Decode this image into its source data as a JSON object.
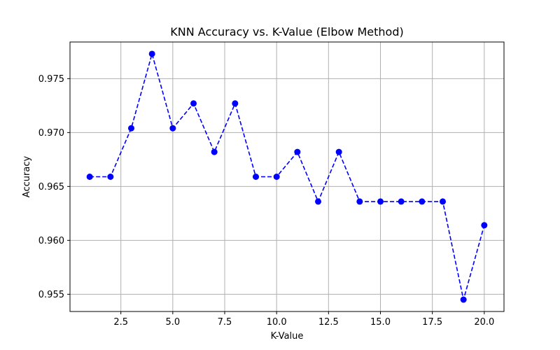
{
  "chart_data": {
    "type": "line",
    "title": "KNN Accuracy vs. K-Value (Elbow Method)",
    "xlabel": "K-Value",
    "ylabel": "Accuracy",
    "x": [
      1,
      2,
      3,
      4,
      5,
      6,
      7,
      8,
      9,
      10,
      11,
      12,
      13,
      14,
      15,
      16,
      17,
      18,
      19,
      20
    ],
    "series": [
      {
        "values": [
          0.9659,
          0.9659,
          0.9704,
          0.9773,
          0.9704,
          0.9727,
          0.9682,
          0.9727,
          0.9659,
          0.9659,
          0.9682,
          0.9636,
          0.9682,
          0.9636,
          0.9636,
          0.9636,
          0.9636,
          0.9636,
          0.9545,
          0.9614
        ],
        "color": "#0000ff",
        "linestyle": "dashed",
        "marker": "circle"
      }
    ],
    "xlim": [
      0.05,
      20.95
    ],
    "ylim": [
      0.9534,
      0.9784
    ],
    "xticks": [
      2.5,
      5.0,
      7.5,
      10.0,
      12.5,
      15.0,
      17.5,
      20.0
    ],
    "xtick_labels": [
      "2.5",
      "5.0",
      "7.5",
      "10.0",
      "12.5",
      "15.0",
      "17.5",
      "20.0"
    ],
    "yticks": [
      0.955,
      0.96,
      0.965,
      0.97,
      0.975
    ],
    "ytick_labels": [
      "0.955",
      "0.960",
      "0.965",
      "0.970",
      "0.975"
    ],
    "grid": true,
    "grid_color": "#b0b0b0"
  }
}
